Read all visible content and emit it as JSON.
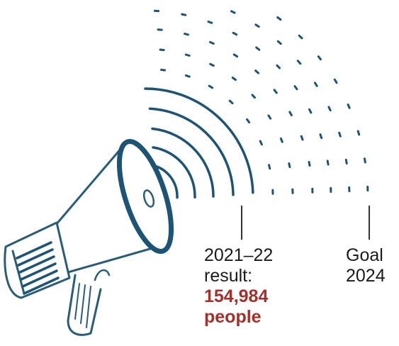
{
  "colors": {
    "ink": "#1d5375",
    "outline": "#2a5c7a",
    "accent": "#a3302b",
    "text": "#1a1a1a",
    "leader": "#333333"
  },
  "icons": [
    "megaphone-icon",
    "sound-wave-icon"
  ],
  "result": {
    "line1": "2021–22",
    "line2": "result:",
    "value": "154,984",
    "unit": "people"
  },
  "goal": {
    "line1": "Goal",
    "line2": "2024"
  }
}
